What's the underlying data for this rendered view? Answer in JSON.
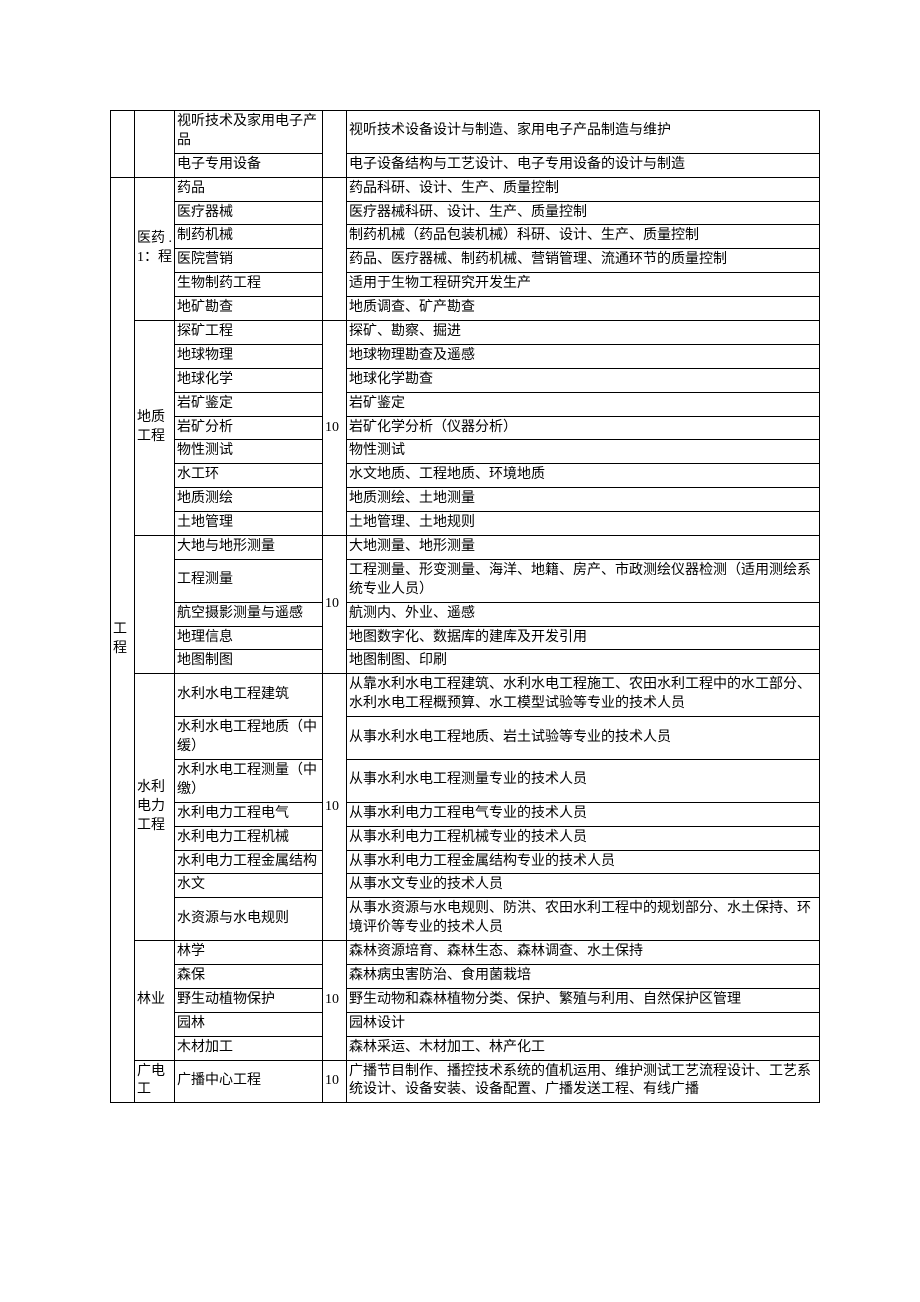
{
  "col0": "工程",
  "sections": [
    {
      "col1": "",
      "rows": [
        {
          "c2": "视听技术及家用电子产品",
          "c3": "",
          "c4": "视听技术设备设计与制造、家用电子产品制造与维护"
        },
        {
          "c2": "电子专用设备",
          "c3": "",
          "c4": "电子设备结构与工艺设计、电子专用设备的设计与制造"
        }
      ]
    },
    {
      "col1": "医药 .1：程",
      "rows": [
        {
          "c2": "药品",
          "c3": "",
          "c4": "药品科研、设计、生产、质量控制"
        },
        {
          "c2": "医疗器械",
          "c3": "",
          "c4": "医疗器械科研、设计、生产、质量控制"
        },
        {
          "c2": "制药机械",
          "c3": "",
          "c4": "制药机械（药品包装机械）科研、设计、生产、质量控制"
        },
        {
          "c2": "医院营销",
          "c3": "",
          "c4": "药品、医疗器械、制药机械、营销管理、流通环节的质量控制"
        },
        {
          "c2": "生物制药工程",
          "c3": "",
          "c4": "适用于生物工程研究开发生产"
        },
        {
          "c2": "地矿勘查",
          "c3": "",
          "c4": "地质调查、矿产勘查"
        }
      ]
    },
    {
      "col1": "地质工程",
      "c3group": "10",
      "rows": [
        {
          "c2": "探矿工程",
          "c4": "探矿、勘察、掘进"
        },
        {
          "c2": "地球物理",
          "c4": "地球物理勘查及遥感"
        },
        {
          "c2": "地球化学",
          "c4": "地球化学勘查"
        },
        {
          "c2": "岩矿鉴定",
          "c4": "岩矿鉴定"
        },
        {
          "c2": "岩矿分析",
          "c4": "岩矿化学分析（仪器分析）"
        },
        {
          "c2": "物性测试",
          "c4": "物性测试"
        },
        {
          "c2": "水工环",
          "c4": "水文地质、工程地质、环境地质"
        },
        {
          "c2": "地质测绘",
          "c4": "地质测绘、土地测量"
        },
        {
          "c2": "土地管理",
          "c4": "土地管理、土地规则"
        }
      ]
    },
    {
      "col1": "",
      "c3group": "10",
      "rows": [
        {
          "c2": "大地与地形测量",
          "c4": "大地测量、地形测量"
        },
        {
          "c2": "工程测量",
          "c4": "工程测量、形变测量、海洋、地籍、房产、市政测绘仪器检测（适用测绘系统专业人员）"
        },
        {
          "c2": "航空摄影测量与遥感",
          "c4": "航测内、外业、遥感"
        },
        {
          "c2": "地理信息",
          "c4": "地图数字化、数据库的建库及开发引用"
        },
        {
          "c2": "地图制图",
          "c4": "地图制图、印刷"
        }
      ]
    },
    {
      "col1": "水利电力工程",
      "c3group": "10",
      "rows": [
        {
          "c2": "水利水电工程建筑",
          "c4": "从靠水利水电工程建筑、水利水电工程施工、农田水利工程中的水工部分、水利水电工程概预算、水工模型试验等专业的技术人员"
        },
        {
          "c2": "水利水电工程地质（中缓）",
          "c4": "从事水利水电工程地质、岩土试验等专业的技术人员"
        },
        {
          "c2": "水利水电工程测量（中缴）",
          "c4": "从事水利水电工程测量专业的技术人员"
        },
        {
          "c2": "水利电力工程电气",
          "c4": "从事水利电力工程电气专业的技术人员"
        },
        {
          "c2": "水利电力工程机械",
          "c4": "从事水利电力工程机械专业的技术人员"
        },
        {
          "c2": "水利电力工程金属结构",
          "c4": "从事水利电力工程金属结构专业的技术人员"
        },
        {
          "c2": "水文",
          "c4": "从事水文专业的技术人员"
        },
        {
          "c2": "水资源与水电规则",
          "c4": "从事水资源与水电规则、防洪、农田水利工程中的规划部分、水土保持、环境评价等专业的技术人员"
        }
      ]
    },
    {
      "col1": "林业",
      "c3group": "10",
      "rows": [
        {
          "c2": "林学",
          "c4": "森林资源培育、森林生态、森林调查、水土保持"
        },
        {
          "c2": "森保",
          "c4": "森林病虫害防治、食用菌栽培"
        },
        {
          "c2": "野生动植物保护",
          "c4": "野生动物和森林植物分类、保护、繁殖与利用、自然保护区管理"
        },
        {
          "c2": "园林",
          "c4": "园林设计"
        },
        {
          "c2": "木材加工",
          "c4": "森林采运、木材加工、林产化工"
        }
      ]
    },
    {
      "col1": "广电工",
      "c3group": "10",
      "rows": [
        {
          "c2": "广播中心工程",
          "c4": "广播节目制作、播控技术系统的值机运用、维护测试工艺流程设计、工艺系统设计、设备安装、设备配置、广播发送工程、有线广播"
        }
      ]
    }
  ]
}
